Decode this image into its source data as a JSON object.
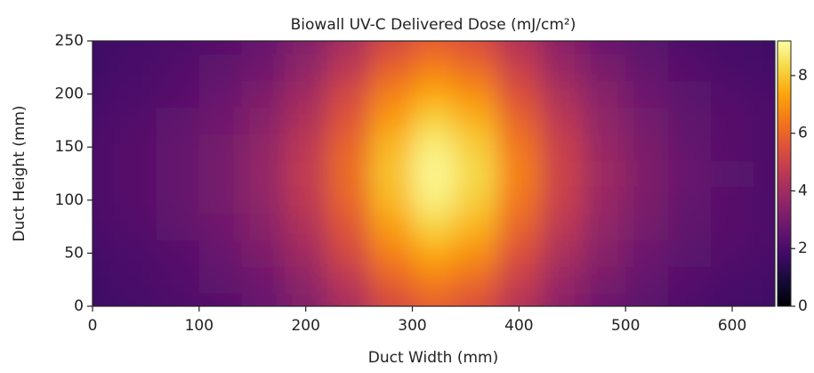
{
  "chart_data": {
    "type": "heatmap",
    "title": "Biowall UV-C Delivered Dose (mJ/cm²)",
    "xlabel": "Duct Width (mm)",
    "ylabel": "Duct Height (mm)",
    "x": [
      0,
      40,
      80,
      120,
      160,
      200,
      240,
      280,
      320,
      360,
      400,
      440,
      480,
      520,
      560,
      600,
      640
    ],
    "y": [
      0,
      25,
      50,
      75,
      100,
      125,
      150,
      175,
      200,
      225,
      250
    ],
    "z": [
      [
        1.8,
        1.9,
        2.1,
        2.3,
        2.7,
        3.3,
        4.1,
        5.2,
        5.8,
        5.4,
        4.4,
        3.5,
        2.8,
        2.4,
        2.1,
        1.9,
        1.8
      ],
      [
        1.8,
        2.0,
        2.2,
        2.5,
        2.9,
        3.6,
        4.6,
        5.9,
        6.6,
        6.1,
        4.9,
        3.8,
        3.1,
        2.6,
        2.3,
        2.0,
        1.9
      ],
      [
        1.9,
        2.1,
        2.3,
        2.7,
        3.2,
        4.0,
        5.2,
        6.6,
        7.4,
        6.9,
        5.5,
        4.2,
        3.4,
        2.8,
        2.4,
        2.2,
        2.0
      ],
      [
        2.0,
        2.2,
        2.5,
        2.9,
        3.4,
        4.3,
        5.6,
        7.2,
        8.2,
        7.6,
        6.0,
        4.6,
        3.6,
        3.0,
        2.5,
        2.3,
        2.1
      ],
      [
        2.1,
        2.3,
        2.6,
        3.0,
        3.6,
        4.6,
        6.0,
        7.7,
        8.8,
        8.1,
        6.4,
        4.9,
        3.8,
        3.1,
        2.6,
        2.3,
        2.1
      ],
      [
        2.1,
        2.3,
        2.6,
        3.0,
        3.7,
        4.7,
        6.1,
        7.9,
        9.0,
        8.3,
        6.6,
        5.0,
        3.9,
        3.2,
        2.7,
        2.4,
        2.1
      ],
      [
        2.1,
        2.3,
        2.6,
        3.0,
        3.6,
        4.6,
        6.0,
        7.7,
        8.8,
        8.1,
        6.4,
        4.9,
        3.8,
        3.1,
        2.6,
        2.3,
        2.1
      ],
      [
        2.0,
        2.2,
        2.5,
        2.9,
        3.4,
        4.3,
        5.6,
        7.2,
        8.2,
        7.6,
        6.0,
        4.6,
        3.6,
        3.0,
        2.5,
        2.3,
        2.1
      ],
      [
        1.9,
        2.1,
        2.3,
        2.7,
        3.2,
        4.0,
        5.2,
        6.6,
        7.4,
        6.9,
        5.5,
        4.2,
        3.4,
        2.8,
        2.4,
        2.2,
        2.0
      ],
      [
        1.8,
        2.0,
        2.2,
        2.5,
        2.9,
        3.6,
        4.6,
        5.9,
        6.6,
        6.1,
        4.9,
        3.8,
        3.1,
        2.6,
        2.3,
        2.0,
        1.9
      ],
      [
        1.8,
        1.9,
        2.1,
        2.3,
        2.7,
        3.3,
        4.1,
        5.2,
        5.8,
        5.4,
        4.4,
        3.5,
        2.8,
        2.4,
        2.1,
        1.9,
        1.8
      ]
    ],
    "xlim": [
      0,
      640
    ],
    "ylim": [
      0,
      250
    ],
    "xticks": [
      0,
      100,
      200,
      300,
      400,
      500,
      600
    ],
    "yticks": [
      0,
      50,
      100,
      150,
      200,
      250
    ],
    "colormap": "inferno",
    "clim": [
      0,
      9.2
    ],
    "cticks": [
      0,
      2,
      4,
      6,
      8
    ]
  }
}
